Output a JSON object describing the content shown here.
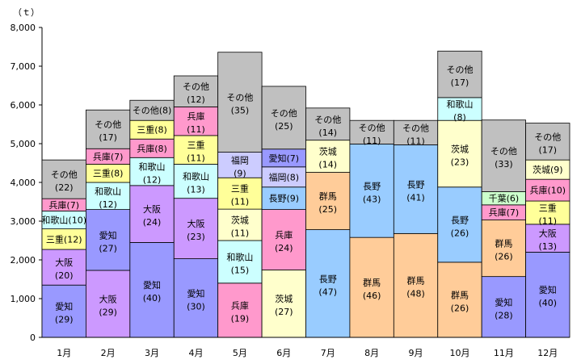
{
  "chart_data": {
    "type": "bar",
    "stacked": true,
    "unit": "（ｔ）",
    "ylim": [
      0,
      8000
    ],
    "yticks": [
      "0",
      "1,000",
      "2,000",
      "3,000",
      "4,000",
      "5,000",
      "6,000",
      "7,000",
      "8,000"
    ],
    "grid": false,
    "colors": {
      "愛知": "#9999ff",
      "大阪": "#cc99ff",
      "三重": "#ffff99",
      "和歌山": "#ccffff",
      "兵庫": "#ff99cc",
      "福岡": "#ccccff",
      "長野": "#99ccff",
      "茨城": "#ffffcc",
      "群馬": "#ffcc99",
      "千葉": "#ccffcc",
      "その他": "#c0c0c0"
    },
    "bars": [
      {
        "category": "1月",
        "segments": [
          {
            "name": "愛知",
            "value": 1350,
            "pct": "(29)"
          },
          {
            "name": "大阪",
            "value": 920,
            "pct": "(20)"
          },
          {
            "name": "三重",
            "value": 530,
            "pct": "(12)"
          },
          {
            "name": "和歌山",
            "value": 460,
            "pct": "(10)"
          },
          {
            "name": "兵庫",
            "value": 320,
            "pct": "(7)"
          },
          {
            "name": "その他",
            "value": 1000,
            "pct": "(22)"
          }
        ]
      },
      {
        "category": "2月",
        "segments": [
          {
            "name": "大阪",
            "value": 1730,
            "pct": "(29)"
          },
          {
            "name": "愛知",
            "value": 1570,
            "pct": "(27)"
          },
          {
            "name": "和歌山",
            "value": 700,
            "pct": "(12)"
          },
          {
            "name": "三重",
            "value": 470,
            "pct": "(8)"
          },
          {
            "name": "兵庫",
            "value": 400,
            "pct": "(7)"
          },
          {
            "name": "その他",
            "value": 1000,
            "pct": "(17)"
          }
        ]
      },
      {
        "category": "3月",
        "segments": [
          {
            "name": "愛知",
            "value": 2450,
            "pct": "(40)"
          },
          {
            "name": "大阪",
            "value": 1470,
            "pct": "(24)"
          },
          {
            "name": "和歌山",
            "value": 720,
            "pct": "(12)"
          },
          {
            "name": "兵庫",
            "value": 480,
            "pct": "(8)"
          },
          {
            "name": "三重",
            "value": 480,
            "pct": "(8)"
          },
          {
            "name": "その他",
            "value": 520,
            "pct": "(8)"
          }
        ]
      },
      {
        "category": "4月",
        "segments": [
          {
            "name": "愛知",
            "value": 2030,
            "pct": "(30)"
          },
          {
            "name": "大阪",
            "value": 1560,
            "pct": "(23)"
          },
          {
            "name": "和歌山",
            "value": 880,
            "pct": "(13)"
          },
          {
            "name": "三重",
            "value": 740,
            "pct": "(11)"
          },
          {
            "name": "兵庫",
            "value": 740,
            "pct": "(11)"
          },
          {
            "name": "その他",
            "value": 800,
            "pct": "(12)"
          }
        ]
      },
      {
        "category": "5月",
        "segments": [
          {
            "name": "兵庫",
            "value": 1400,
            "pct": "(19)"
          },
          {
            "name": "和歌山",
            "value": 1100,
            "pct": "(15)"
          },
          {
            "name": "茨城",
            "value": 810,
            "pct": "(11)"
          },
          {
            "name": "三重",
            "value": 810,
            "pct": "(11)"
          },
          {
            "name": "福岡",
            "value": 660,
            "pct": "(9)"
          },
          {
            "name": "その他",
            "value": 2580,
            "pct": "(35)"
          }
        ]
      },
      {
        "category": "6月",
        "segments": [
          {
            "name": "茨城",
            "value": 1740,
            "pct": "(27)"
          },
          {
            "name": "兵庫",
            "value": 1560,
            "pct": "(24)"
          },
          {
            "name": "長野",
            "value": 580,
            "pct": "(9)"
          },
          {
            "name": "福岡",
            "value": 520,
            "pct": "(8)"
          },
          {
            "name": "愛知",
            "value": 460,
            "pct": "(7)"
          },
          {
            "name": "その他",
            "value": 1620,
            "pct": "(25)"
          }
        ]
      },
      {
        "category": "7月",
        "segments": [
          {
            "name": "長野",
            "value": 2780,
            "pct": "(47)"
          },
          {
            "name": "群馬",
            "value": 1480,
            "pct": "(25)"
          },
          {
            "name": "茨城",
            "value": 830,
            "pct": "(14)"
          },
          {
            "name": "その他",
            "value": 830,
            "pct": "(14)"
          }
        ]
      },
      {
        "category": "8月",
        "segments": [
          {
            "name": "群馬",
            "value": 2580,
            "pct": "(46)"
          },
          {
            "name": "長野",
            "value": 2410,
            "pct": "(43)"
          },
          {
            "name": "その他",
            "value": 610,
            "pct": "(11)"
          }
        ]
      },
      {
        "category": "9月",
        "segments": [
          {
            "name": "群馬",
            "value": 2680,
            "pct": "(48)"
          },
          {
            "name": "長野",
            "value": 2290,
            "pct": "(41)"
          },
          {
            "name": "その他",
            "value": 630,
            "pct": "(11)"
          }
        ]
      },
      {
        "category": "10月",
        "segments": [
          {
            "name": "群馬",
            "value": 1940,
            "pct": "(26)"
          },
          {
            "name": "長野",
            "value": 1940,
            "pct": "(26)"
          },
          {
            "name": "茨城",
            "value": 1720,
            "pct": "(23)"
          },
          {
            "name": "和歌山",
            "value": 590,
            "pct": "(8)"
          },
          {
            "name": "その他",
            "value": 1200,
            "pct": "(17)"
          }
        ]
      },
      {
        "category": "11月",
        "segments": [
          {
            "name": "愛知",
            "value": 1570,
            "pct": "(28)"
          },
          {
            "name": "群馬",
            "value": 1460,
            "pct": "(26)"
          },
          {
            "name": "兵庫",
            "value": 390,
            "pct": "(7)"
          },
          {
            "name": "千葉",
            "value": 340,
            "pct": "(6)"
          },
          {
            "name": "その他",
            "value": 1850,
            "pct": "(33)"
          }
        ]
      },
      {
        "category": "12月",
        "segments": [
          {
            "name": "愛知",
            "value": 2200,
            "pct": "(40)"
          },
          {
            "name": "大阪",
            "value": 720,
            "pct": "(13)"
          },
          {
            "name": "三重",
            "value": 600,
            "pct": "(11)"
          },
          {
            "name": "兵庫",
            "value": 560,
            "pct": "(10)"
          },
          {
            "name": "茨城",
            "value": 500,
            "pct": "(9)"
          },
          {
            "name": "その他",
            "value": 950,
            "pct": "(17)"
          }
        ]
      }
    ]
  }
}
